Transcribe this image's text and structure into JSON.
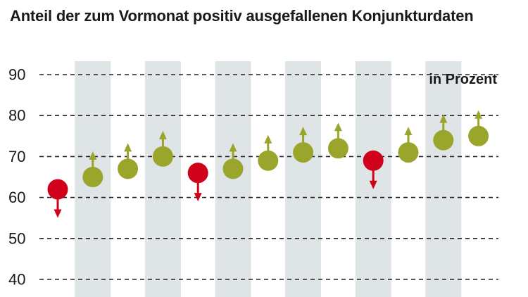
{
  "chart_data": {
    "type": "scatter",
    "title": "Anteil der zum Vormonat positiv ausgefallenen Konjunkturdaten",
    "unit_label": "in Prozent",
    "ylim": [
      40,
      90
    ],
    "yticks": [
      40,
      50,
      60,
      70,
      80,
      90
    ],
    "grid": true,
    "shaded_bands": [
      2,
      4,
      6,
      8,
      10,
      12
    ],
    "points": [
      {
        "index": 1,
        "value": 62,
        "direction": "down"
      },
      {
        "index": 2,
        "value": 65,
        "direction": "up"
      },
      {
        "index": 3,
        "value": 67,
        "direction": "up"
      },
      {
        "index": 4,
        "value": 70,
        "direction": "up"
      },
      {
        "index": 5,
        "value": 66,
        "direction": "down"
      },
      {
        "index": 6,
        "value": 67,
        "direction": "up"
      },
      {
        "index": 7,
        "value": 69,
        "direction": "up"
      },
      {
        "index": 8,
        "value": 71,
        "direction": "up"
      },
      {
        "index": 9,
        "value": 72,
        "direction": "up"
      },
      {
        "index": 10,
        "value": 69,
        "direction": "down"
      },
      {
        "index": 11,
        "value": 71,
        "direction": "up"
      },
      {
        "index": 12,
        "value": 74,
        "direction": "up"
      },
      {
        "index": 13,
        "value": 75,
        "direction": "up"
      }
    ],
    "colors": {
      "up": "#9aa52b",
      "down": "#d0021b",
      "band": "#dfe4e7",
      "grid": "#222222",
      "text": "#1a1a1a"
    }
  }
}
